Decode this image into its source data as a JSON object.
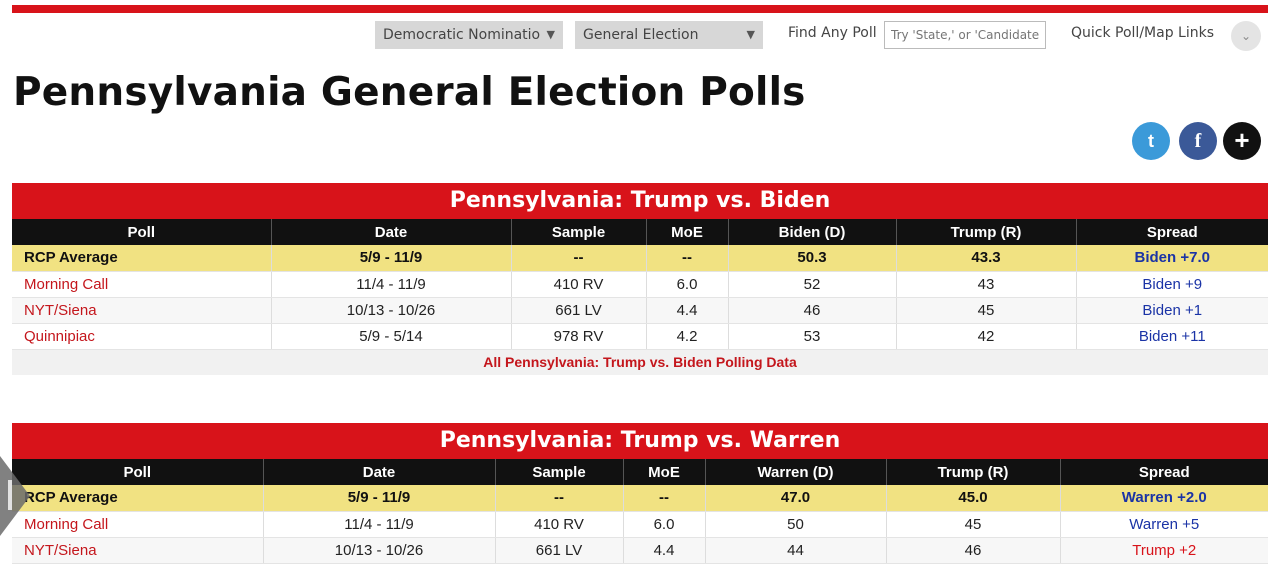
{
  "nav": {
    "select1": "Democratic Nominatio",
    "select2": "General Election",
    "find_label": "Find Any Poll",
    "find_placeholder": "Try 'State,' or 'Candidate'",
    "quick_links": "Quick Poll/Map Links"
  },
  "page_title": "Pennsylvania General Election Polls",
  "social": {
    "twitter": "t",
    "facebook": "f",
    "more": "+"
  },
  "polls": [
    {
      "title": "Pennsylvania: Trump vs. Biden",
      "headers": [
        "Poll",
        "Date",
        "Sample",
        "MoE",
        "Biden (D)",
        "Trump (R)",
        "Spread"
      ],
      "rows": [
        [
          "RCP Average",
          "5/9 - 11/9",
          "--",
          "--",
          "50.3",
          "43.3",
          "Biden +7.0"
        ],
        [
          "Morning Call",
          "11/4 - 11/9",
          "410 RV",
          "6.0",
          "52",
          "43",
          "Biden +9"
        ],
        [
          "NYT/Siena",
          "10/13 - 10/26",
          "661 LV",
          "4.4",
          "46",
          "45",
          "Biden +1"
        ],
        [
          "Quinnipiac",
          "5/9 - 5/14",
          "978 RV",
          "4.2",
          "53",
          "42",
          "Biden +11"
        ]
      ],
      "all_link": "All Pennsylvania: Trump vs. Biden Polling Data"
    },
    {
      "title": "Pennsylvania: Trump vs. Warren",
      "headers": [
        "Poll",
        "Date",
        "Sample",
        "MoE",
        "Warren (D)",
        "Trump (R)",
        "Spread"
      ],
      "rows": [
        [
          "RCP Average",
          "5/9 - 11/9",
          "--",
          "--",
          "47.0",
          "45.0",
          "Warren +2.0"
        ],
        [
          "Morning Call",
          "11/4 - 11/9",
          "410 RV",
          "6.0",
          "50",
          "45",
          "Warren +5"
        ],
        [
          "NYT/Siena",
          "10/13 - 10/26",
          "661 LV",
          "4.4",
          "44",
          "46",
          "Trump +2"
        ]
      ]
    }
  ],
  "colors": {
    "accent_red": "#d8131a",
    "rcp_row": "#f1e282",
    "dem_blue": "#1a33a6"
  }
}
